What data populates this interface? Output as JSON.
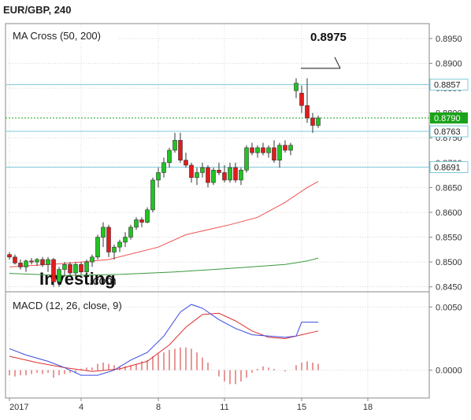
{
  "header": {
    "title": "EUR/GBP, 240"
  },
  "colors": {
    "up": "#22c322",
    "down": "#e21b1b",
    "ma50": "#f05050",
    "ma200": "#3a9a3a",
    "macd": "#3b48e0",
    "signal": "#e03030",
    "hist": "#d03030",
    "hline": "#7fc8d8",
    "current": "#1aa31a",
    "brand": "#111111"
  },
  "chart_data": [
    {
      "type": "candlestick",
      "title": "MA Cross (50, 200)",
      "ylim": [
        0.844,
        0.898
      ],
      "y_ticks": [
        "0.8450",
        "0.8500",
        "0.8550",
        "0.8600",
        "0.8650",
        "0.8700",
        "0.8750",
        "0.8800",
        "0.8850",
        "0.8900",
        "0.8950"
      ],
      "x_ticks": [
        {
          "i": 0,
          "label": "2017"
        },
        {
          "i": 13,
          "label": "4"
        },
        {
          "i": 27,
          "label": "8"
        },
        {
          "i": 39,
          "label": "11"
        },
        {
          "i": 53,
          "label": "15"
        },
        {
          "i": 65,
          "label": "18"
        }
      ],
      "levels": [
        {
          "value": 0.8857,
          "label": "0.8857",
          "style": "box"
        },
        {
          "value": 0.879,
          "label": "0.8790",
          "style": "current"
        },
        {
          "value": 0.8763,
          "label": "0.8763",
          "style": "box"
        },
        {
          "value": 0.8691,
          "label": "0.8691",
          "style": "box"
        }
      ],
      "annotation": {
        "label": "0.8975",
        "value": 0.889
      },
      "watermark": "Investing.com",
      "candles": [
        [
          0.8515,
          0.852,
          0.8505,
          0.851
        ],
        [
          0.851,
          0.8515,
          0.8495,
          0.8498
        ],
        [
          0.8498,
          0.8505,
          0.8485,
          0.849
        ],
        [
          0.849,
          0.8505,
          0.848,
          0.8502
        ],
        [
          0.8502,
          0.8508,
          0.8495,
          0.85
        ],
        [
          0.85,
          0.8508,
          0.8492,
          0.8505
        ],
        [
          0.8505,
          0.851,
          0.849,
          0.8495
        ],
        [
          0.8495,
          0.851,
          0.848,
          0.8505
        ],
        [
          0.8505,
          0.8508,
          0.845,
          0.846
        ],
        [
          0.846,
          0.849,
          0.845,
          0.8485
        ],
        [
          0.8485,
          0.85,
          0.847,
          0.8495
        ],
        [
          0.8495,
          0.85,
          0.847,
          0.8478
        ],
        [
          0.8478,
          0.85,
          0.847,
          0.8495
        ],
        [
          0.8495,
          0.85,
          0.8475,
          0.848
        ],
        [
          0.848,
          0.8505,
          0.8475,
          0.85
        ],
        [
          0.85,
          0.8515,
          0.849,
          0.851
        ],
        [
          0.851,
          0.8555,
          0.8505,
          0.855
        ],
        [
          0.855,
          0.858,
          0.853,
          0.857
        ],
        [
          0.857,
          0.8575,
          0.851,
          0.852
        ],
        [
          0.852,
          0.8535,
          0.8505,
          0.853
        ],
        [
          0.853,
          0.8545,
          0.852,
          0.854
        ],
        [
          0.854,
          0.856,
          0.853,
          0.855
        ],
        [
          0.855,
          0.8575,
          0.8545,
          0.857
        ],
        [
          0.857,
          0.859,
          0.8565,
          0.8585
        ],
        [
          0.8585,
          0.859,
          0.857,
          0.858
        ],
        [
          0.858,
          0.861,
          0.8578,
          0.8605
        ],
        [
          0.8605,
          0.867,
          0.86,
          0.8665
        ],
        [
          0.8665,
          0.869,
          0.865,
          0.868
        ],
        [
          0.868,
          0.871,
          0.867,
          0.87
        ],
        [
          0.87,
          0.873,
          0.869,
          0.8725
        ],
        [
          0.8725,
          0.876,
          0.872,
          0.8745
        ],
        [
          0.8745,
          0.876,
          0.87,
          0.8705
        ],
        [
          0.8705,
          0.872,
          0.869,
          0.8695
        ],
        [
          0.8695,
          0.87,
          0.866,
          0.867
        ],
        [
          0.867,
          0.869,
          0.8655,
          0.868
        ],
        [
          0.868,
          0.87,
          0.867,
          0.869
        ],
        [
          0.869,
          0.8695,
          0.865,
          0.866
        ],
        [
          0.866,
          0.869,
          0.8655,
          0.8685
        ],
        [
          0.8685,
          0.87,
          0.8675,
          0.868
        ],
        [
          0.868,
          0.8695,
          0.866,
          0.8665
        ],
        [
          0.8665,
          0.87,
          0.866,
          0.869
        ],
        [
          0.869,
          0.87,
          0.866,
          0.8665
        ],
        [
          0.8665,
          0.869,
          0.8655,
          0.8685
        ],
        [
          0.8685,
          0.8735,
          0.868,
          0.873
        ],
        [
          0.873,
          0.874,
          0.8715,
          0.872
        ],
        [
          0.872,
          0.8735,
          0.871,
          0.873
        ],
        [
          0.873,
          0.874,
          0.8715,
          0.872
        ],
        [
          0.872,
          0.8735,
          0.871,
          0.873
        ],
        [
          0.873,
          0.8745,
          0.87,
          0.8705
        ],
        [
          0.8705,
          0.874,
          0.869,
          0.8735
        ],
        [
          0.8735,
          0.8745,
          0.872,
          0.8725
        ],
        [
          0.8725,
          0.874,
          0.8715,
          0.8735
        ],
        [
          0.8845,
          0.887,
          0.883,
          0.886
        ],
        [
          0.884,
          0.8855,
          0.88,
          0.8815
        ],
        [
          0.8815,
          0.887,
          0.878,
          0.879
        ],
        [
          0.879,
          0.88,
          0.876,
          0.8775
        ],
        [
          0.8775,
          0.8795,
          0.877,
          0.879
        ]
      ],
      "ma50": [
        [
          0,
          0.849
        ],
        [
          10,
          0.8497
        ],
        [
          18,
          0.8505
        ],
        [
          27,
          0.853
        ],
        [
          32,
          0.8555
        ],
        [
          40,
          0.8575
        ],
        [
          45,
          0.859
        ],
        [
          50,
          0.862
        ],
        [
          54,
          0.865
        ],
        [
          56,
          0.8662
        ]
      ],
      "ma200": [
        [
          0,
          0.8477
        ],
        [
          10,
          0.8473
        ],
        [
          20,
          0.8475
        ],
        [
          30,
          0.848
        ],
        [
          40,
          0.8487
        ],
        [
          50,
          0.8495
        ],
        [
          54,
          0.8502
        ],
        [
          56,
          0.8508
        ]
      ]
    },
    {
      "type": "macd",
      "title": "MACD (12, 26, close, 9)",
      "ylim": [
        -0.0022,
        0.0062
      ],
      "y_ticks": [
        "0.0050",
        "0.0000"
      ],
      "macd": [
        [
          0,
          0.0017
        ],
        [
          3,
          0.0012
        ],
        [
          7,
          0.0007
        ],
        [
          10,
          0.0002
        ],
        [
          13,
          -0.0004
        ],
        [
          16,
          -0.0004
        ],
        [
          19,
          0.0
        ],
        [
          22,
          0.0008
        ],
        [
          25,
          0.0014
        ],
        [
          28,
          0.0027
        ],
        [
          31,
          0.0046
        ],
        [
          33,
          0.0052
        ],
        [
          35,
          0.0049
        ],
        [
          38,
          0.004
        ],
        [
          41,
          0.0033
        ],
        [
          44,
          0.0028
        ],
        [
          47,
          0.0027
        ],
        [
          50,
          0.0026
        ],
        [
          52,
          0.0027
        ],
        [
          53,
          0.0038
        ],
        [
          55,
          0.0038
        ],
        [
          56,
          0.0038
        ]
      ],
      "signal": [
        [
          0,
          0.0011
        ],
        [
          5,
          0.0006
        ],
        [
          10,
          0.0002
        ],
        [
          15,
          -0.0001
        ],
        [
          20,
          0.0001
        ],
        [
          25,
          0.0007
        ],
        [
          29,
          0.002
        ],
        [
          32,
          0.0034
        ],
        [
          35,
          0.0044
        ],
        [
          38,
          0.0045
        ],
        [
          41,
          0.0039
        ],
        [
          44,
          0.0031
        ],
        [
          47,
          0.0026
        ],
        [
          50,
          0.0025
        ],
        [
          53,
          0.0028
        ],
        [
          56,
          0.0031
        ]
      ],
      "histogram": [
        -0.0004,
        -0.0005,
        -0.0004,
        -0.0004,
        -0.0003,
        -0.0002,
        -0.0003,
        -0.0002,
        -0.0006,
        -0.0004,
        -0.0003,
        -0.0002,
        -0.0002,
        0.0001,
        0.0002,
        0.0002,
        0.0005,
        0.0006,
        0.0005,
        0.0004,
        0.0003,
        0.0003,
        0.0004,
        0.0005,
        0.0007,
        0.0008,
        0.0011,
        0.0013,
        0.0014,
        0.0016,
        0.0017,
        0.0018,
        0.0018,
        0.0017,
        0.0014,
        0.001,
        0.0006,
        0.0,
        -0.0005,
        -0.0009,
        -0.0011,
        -0.0011,
        -0.0009,
        -0.0006,
        -0.0002,
        0.0001,
        0.0003,
        0.0002,
        0.0001,
        0.0,
        -0.0001,
        0.0,
        0.0004,
        0.0006,
        0.0007,
        0.0006,
        0.0005
      ]
    }
  ]
}
